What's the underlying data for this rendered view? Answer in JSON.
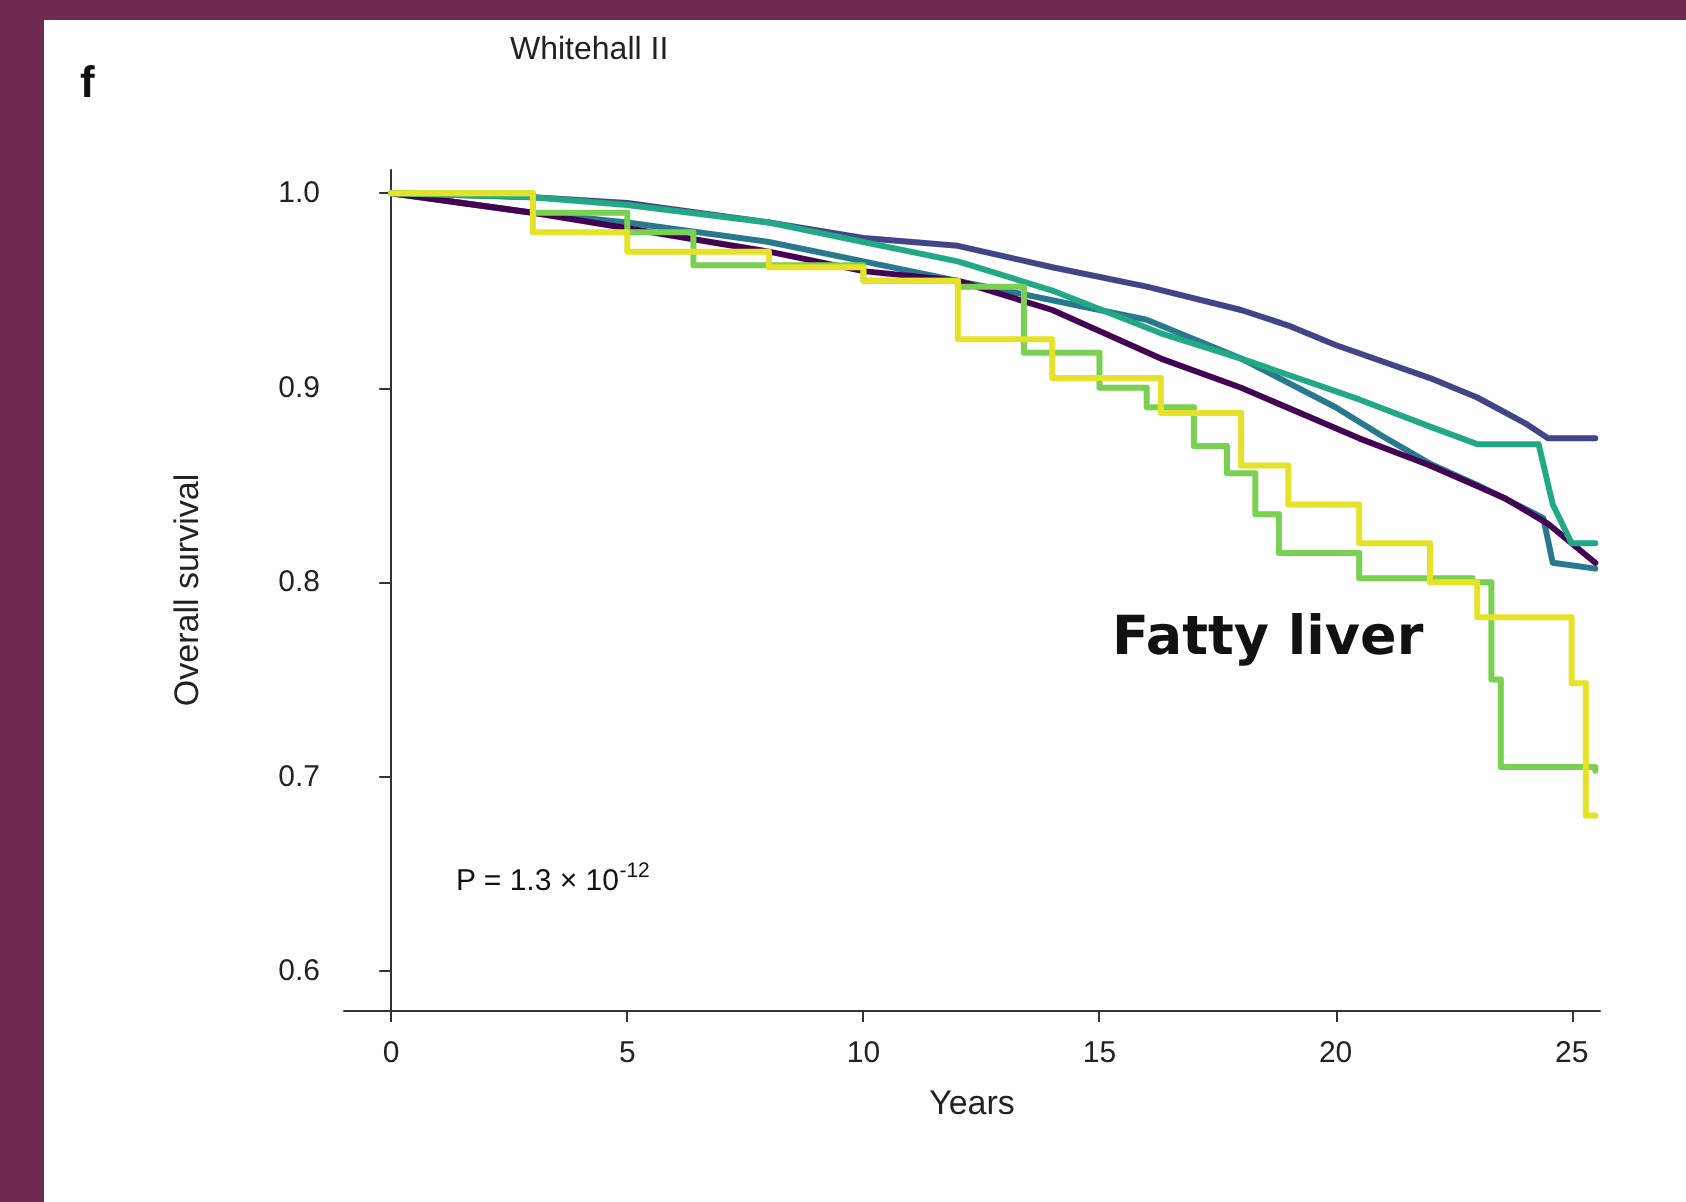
{
  "chart_data": {
    "type": "step",
    "title": "Whitehall II",
    "xlabel": "Years",
    "ylabel": "Overall survival",
    "annotations": [
      "f",
      "P = 1.3 × 10$^{-12}$",
      "Fatty liver"
    ],
    "xlim": [
      -1,
      25.6
    ],
    "xticks": [
      0,
      5,
      10,
      15,
      20,
      25
    ],
    "ylim": [
      0.58,
      1.012
    ],
    "yticks": [
      0.6,
      0.7,
      0.8,
      0.9,
      {
        "value": 1,
        "label": "1.0"
      }
    ],
    "grid": false,
    "marker": "none",
    "line_style": "solid",
    "series": [
      {
        "type": "line",
        "color": "#414487",
        "x": [
          0,
          3,
          5,
          8,
          10,
          12,
          14,
          16,
          18,
          19,
          20,
          22,
          23,
          24,
          24.5,
          25.5
        ],
        "values": [
          1.0,
          0.998,
          0.995,
          0.985,
          0.977,
          0.973,
          0.962,
          0.952,
          0.94,
          0.932,
          0.922,
          0.905,
          0.895,
          0.882,
          0.874,
          0.874
        ]
      },
      {
        "type": "line",
        "color": "#2a788e",
        "x": [
          0,
          3,
          5,
          8,
          10,
          12,
          14,
          16,
          18,
          20,
          21,
          22,
          23,
          24,
          24.4,
          24.6,
          25.5
        ],
        "values": [
          1.0,
          0.99,
          0.985,
          0.975,
          0.965,
          0.955,
          0.945,
          0.935,
          0.915,
          0.89,
          0.875,
          0.861,
          0.85,
          0.838,
          0.833,
          0.81,
          0.807
        ]
      },
      {
        "type": "line",
        "color": "#440154",
        "x": [
          0,
          3,
          5,
          8,
          10,
          12,
          14,
          16.3,
          18,
          20.5,
          22,
          23.6,
          24.5,
          25.5
        ],
        "values": [
          1.0,
          0.99,
          0.982,
          0.97,
          0.96,
          0.955,
          0.94,
          0.915,
          0.9,
          0.874,
          0.86,
          0.843,
          0.83,
          0.81
        ]
      },
      {
        "type": "line",
        "color": "#22a884",
        "x": [
          0,
          3,
          5,
          8,
          10,
          12,
          14,
          16.3,
          18,
          20.5,
          22,
          23,
          24.3,
          24.6,
          25,
          25.5
        ],
        "values": [
          1.0,
          0.998,
          0.994,
          0.985,
          0.975,
          0.965,
          0.95,
          0.928,
          0.915,
          0.894,
          0.88,
          0.871,
          0.871,
          0.84,
          0.82,
          0.82
        ]
      },
      {
        "color": "#7ad151",
        "x": [
          0,
          3,
          5,
          6.4,
          7.8,
          10,
          12,
          13.4,
          15,
          16,
          17,
          17.7,
          18.3,
          18.8,
          20.5,
          22.9,
          23.3,
          23.5,
          25.5
        ],
        "values": [
          1.0,
          0.99,
          0.98,
          0.963,
          0.963,
          0.955,
          0.952,
          0.918,
          0.9,
          0.89,
          0.87,
          0.856,
          0.835,
          0.815,
          0.802,
          0.8,
          0.75,
          0.705,
          0.703
        ]
      },
      {
        "color": "#e6e22a",
        "x": [
          0,
          3,
          5,
          8,
          10,
          12,
          14,
          16.3,
          18,
          19,
          20.5,
          22,
          23,
          24.6,
          25,
          25.3,
          25.5
        ],
        "values": [
          1.0,
          0.98,
          0.97,
          0.962,
          0.955,
          0.925,
          0.905,
          0.887,
          0.86,
          0.84,
          0.82,
          0.8,
          0.782,
          0.782,
          0.748,
          0.68,
          0.68
        ]
      }
    ]
  }
}
